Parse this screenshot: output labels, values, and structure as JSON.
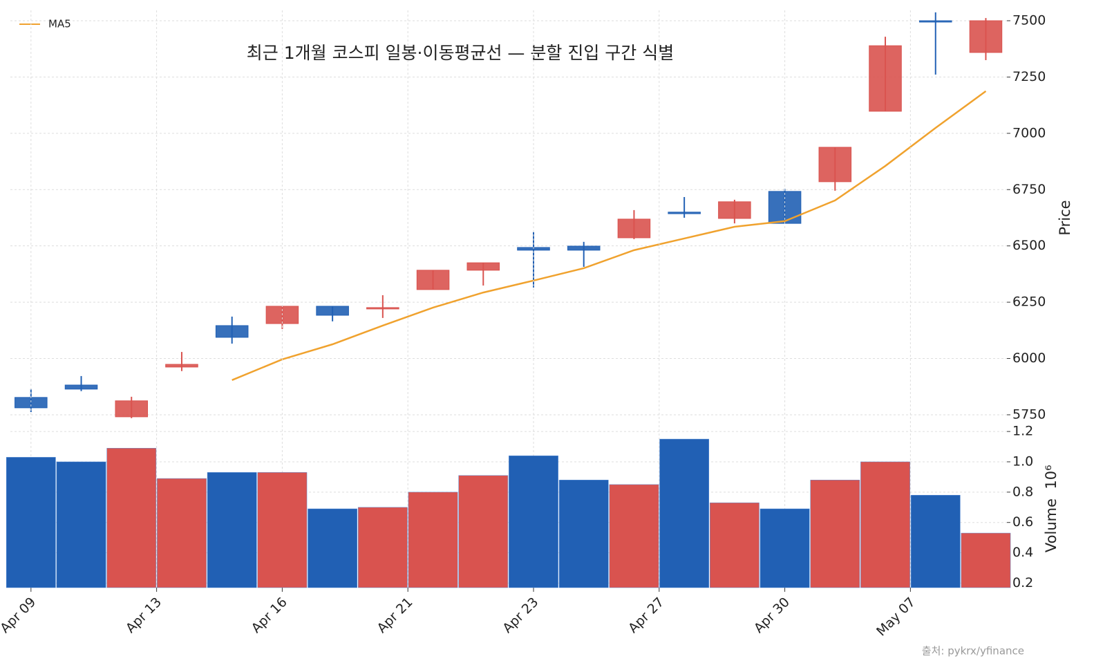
{
  "chart_data": [
    {
      "type": "candlestick",
      "title": "최근 1개월 코스피 일봉·이동평균선 — 분할 진입 구간 식별",
      "ylabel": "Price",
      "up_color": "#d9534f",
      "down_color": "#2160b4",
      "open": [
        5827,
        5882,
        5741,
        5962,
        6146,
        6155,
        6232,
        6220,
        6306,
        6392,
        6493,
        6499,
        6536,
        6650,
        6622,
        6742,
        6785,
        7098,
        7500,
        7359
      ],
      "high": [
        5864,
        5922,
        5830,
        6029,
        6186,
        6232,
        6232,
        6281,
        6392,
        6425,
        6561,
        6518,
        6659,
        6717,
        6705,
        6754,
        6938,
        7429,
        7537,
        7512
      ],
      "low": [
        5762,
        5855,
        5735,
        5944,
        6066,
        6131,
        6165,
        6180,
        6306,
        6324,
        6315,
        6407,
        6530,
        6625,
        6600,
        6600,
        6745,
        7098,
        7261,
        7325
      ],
      "close": [
        5781,
        5864,
        5812,
        5974,
        6094,
        6232,
        6192,
        6226,
        6392,
        6425,
        6481,
        6481,
        6619,
        6643,
        6696,
        6600,
        6938,
        7389,
        7494,
        7500
      ],
      "ma": {
        "name": "MA5",
        "color": "#f0a22e",
        "values": [
          null,
          null,
          null,
          null,
          5904,
          5996,
          6063,
          6146,
          6226,
          6293,
          6346,
          6401,
          6481,
          6533,
          6585,
          6610,
          6702,
          6855,
          7024,
          7187
        ]
      },
      "legend": "upper left",
      "grid": true,
      "xlim": [
        -0.41,
        19.42
      ],
      "ylim": [
        5713,
        7546
      ],
      "yticks": [
        5750,
        6000,
        6250,
        6500,
        6750,
        7000,
        7250,
        7500
      ]
    },
    {
      "type": "bar",
      "ylabel": "Volume",
      "offset_label": "10⁶",
      "values": [
        1.03,
        1.0,
        1.09,
        0.89,
        0.93,
        0.93,
        0.69,
        0.7,
        0.8,
        0.91,
        1.04,
        0.88,
        0.85,
        1.15,
        0.73,
        0.69,
        0.88,
        1.0,
        0.78,
        0.53
      ],
      "colors": [
        "#2160b4",
        "#2160b4",
        "#d9534f",
        "#d9534f",
        "#2160b4",
        "#d9534f",
        "#2160b4",
        "#d9534f",
        "#d9534f",
        "#d9534f",
        "#2160b4",
        "#2160b4",
        "#d9534f",
        "#2160b4",
        "#d9534f",
        "#2160b4",
        "#d9534f",
        "#d9534f",
        "#2160b4",
        "#d9534f"
      ],
      "grid": true,
      "xlim": [
        -0.41,
        19.42
      ],
      "ylim": [
        0.17,
        1.237
      ],
      "yticks": [
        {
          "value": 0.2,
          "label": "0.2"
        },
        {
          "value": 0.4,
          "label": "0.4"
        },
        {
          "value": 0.6,
          "label": "0.6"
        },
        {
          "value": 0.8,
          "label": "0.8"
        },
        {
          "value": 1.0,
          "label": "1.0"
        },
        {
          "value": 1.2,
          "label": "1.2"
        }
      ],
      "xticks": [
        {
          "value": 0,
          "label": "Apr 09"
        },
        {
          "value": 2.5,
          "label": "Apr 13"
        },
        {
          "value": 5,
          "label": "Apr 16"
        },
        {
          "value": 7.5,
          "label": "Apr 21"
        },
        {
          "value": 10,
          "label": "Apr 23"
        },
        {
          "value": 12.5,
          "label": "Apr 27"
        },
        {
          "value": 15,
          "label": "Apr 30"
        },
        {
          "value": 17.5,
          "label": "May 07"
        }
      ]
    }
  ],
  "source": "출처: pykrx/yfinance"
}
